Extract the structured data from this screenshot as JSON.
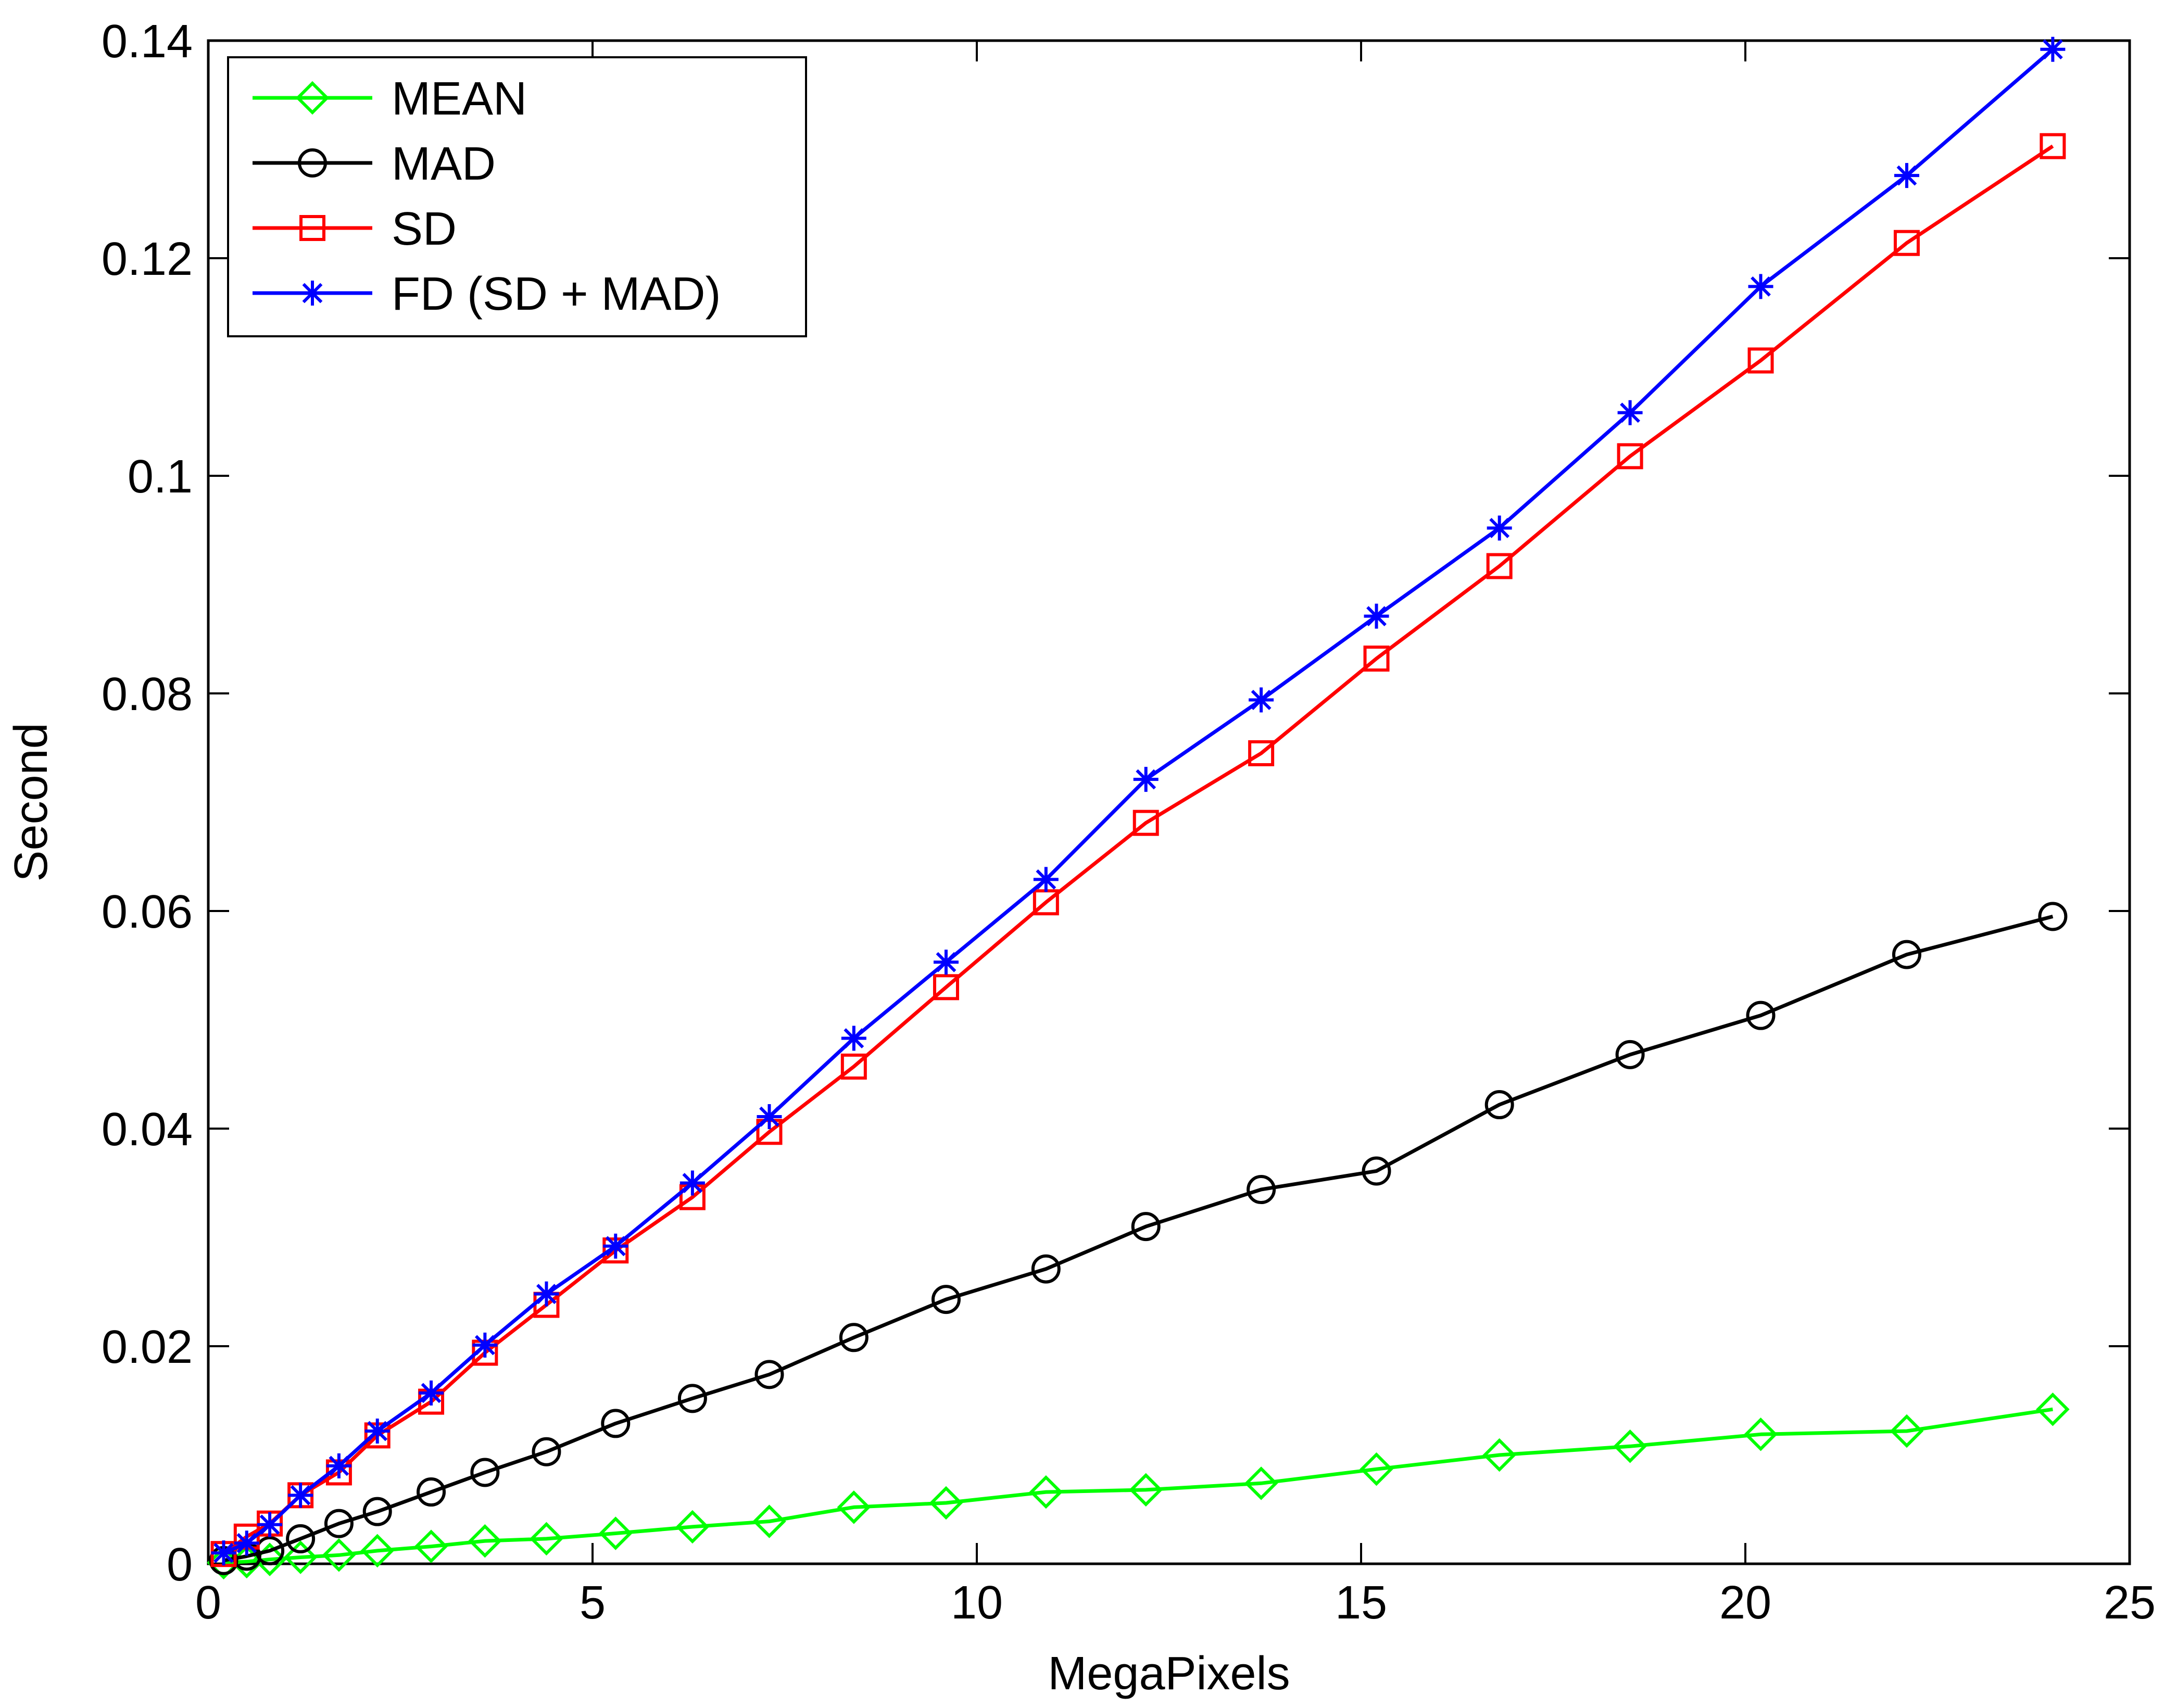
{
  "chart_data": {
    "type": "line",
    "title": "",
    "xlabel": "MegaPixels",
    "ylabel": "Second",
    "xlim": [
      0,
      25
    ],
    "ylim": [
      0,
      0.14
    ],
    "xticks": [
      0,
      5,
      10,
      15,
      20,
      25
    ],
    "xtick_labels": [
      "0",
      "5",
      "10",
      "15",
      "20",
      "25"
    ],
    "yticks": [
      0,
      0.02,
      0.04,
      0.06,
      0.08,
      0.1,
      0.12,
      0.14
    ],
    "ytick_labels": [
      "0",
      "0.02",
      "0.04",
      "0.06",
      "0.08",
      "0.1",
      "0.12",
      "0.14"
    ],
    "grid": false,
    "legend_position": "top-left",
    "x": [
      0.2,
      0.5,
      0.8,
      1.2,
      1.7,
      2.2,
      2.9,
      3.6,
      4.4,
      5.3,
      6.3,
      7.3,
      8.4,
      9.6,
      10.9,
      12.2,
      13.7,
      15.2,
      16.8,
      18.5,
      20.2,
      22.1,
      24.0
    ],
    "series": [
      {
        "name": "MEAN",
        "color": "#00ff00",
        "marker": "diamond",
        "values": [
          0.0001,
          0.0002,
          0.0004,
          0.0006,
          0.0008,
          0.0012,
          0.0016,
          0.0021,
          0.0023,
          0.0028,
          0.0034,
          0.0039,
          0.0052,
          0.0056,
          0.0066,
          0.0068,
          0.0074,
          0.0087,
          0.01,
          0.0108,
          0.0119,
          0.0122,
          0.0142
        ]
      },
      {
        "name": "MAD",
        "color": "#000000",
        "marker": "circle",
        "values": [
          0.0003,
          0.0007,
          0.0012,
          0.0023,
          0.0037,
          0.0048,
          0.0066,
          0.0084,
          0.0103,
          0.0129,
          0.0152,
          0.0174,
          0.0208,
          0.0243,
          0.0271,
          0.031,
          0.0344,
          0.0361,
          0.0422,
          0.0468,
          0.0504,
          0.056,
          0.0595
        ]
      },
      {
        "name": "SD",
        "color": "#ff0000",
        "marker": "square",
        "values": [
          0.0009,
          0.0025,
          0.0037,
          0.0063,
          0.0084,
          0.0118,
          0.0149,
          0.0194,
          0.0238,
          0.0288,
          0.0337,
          0.0397,
          0.0457,
          0.053,
          0.0608,
          0.0681,
          0.0745,
          0.0832,
          0.0917,
          0.1018,
          0.1106,
          0.1214,
          0.1303
        ]
      },
      {
        "name": "FD (SD + MAD)",
        "color": "#0000ff",
        "marker": "star",
        "values": [
          0.001,
          0.0019,
          0.0036,
          0.0063,
          0.009,
          0.0122,
          0.0157,
          0.0201,
          0.0248,
          0.0292,
          0.035,
          0.0411,
          0.0483,
          0.0553,
          0.0629,
          0.0721,
          0.0794,
          0.0871,
          0.0952,
          0.1058,
          0.1174,
          0.1276,
          0.1392
        ]
      }
    ]
  }
}
